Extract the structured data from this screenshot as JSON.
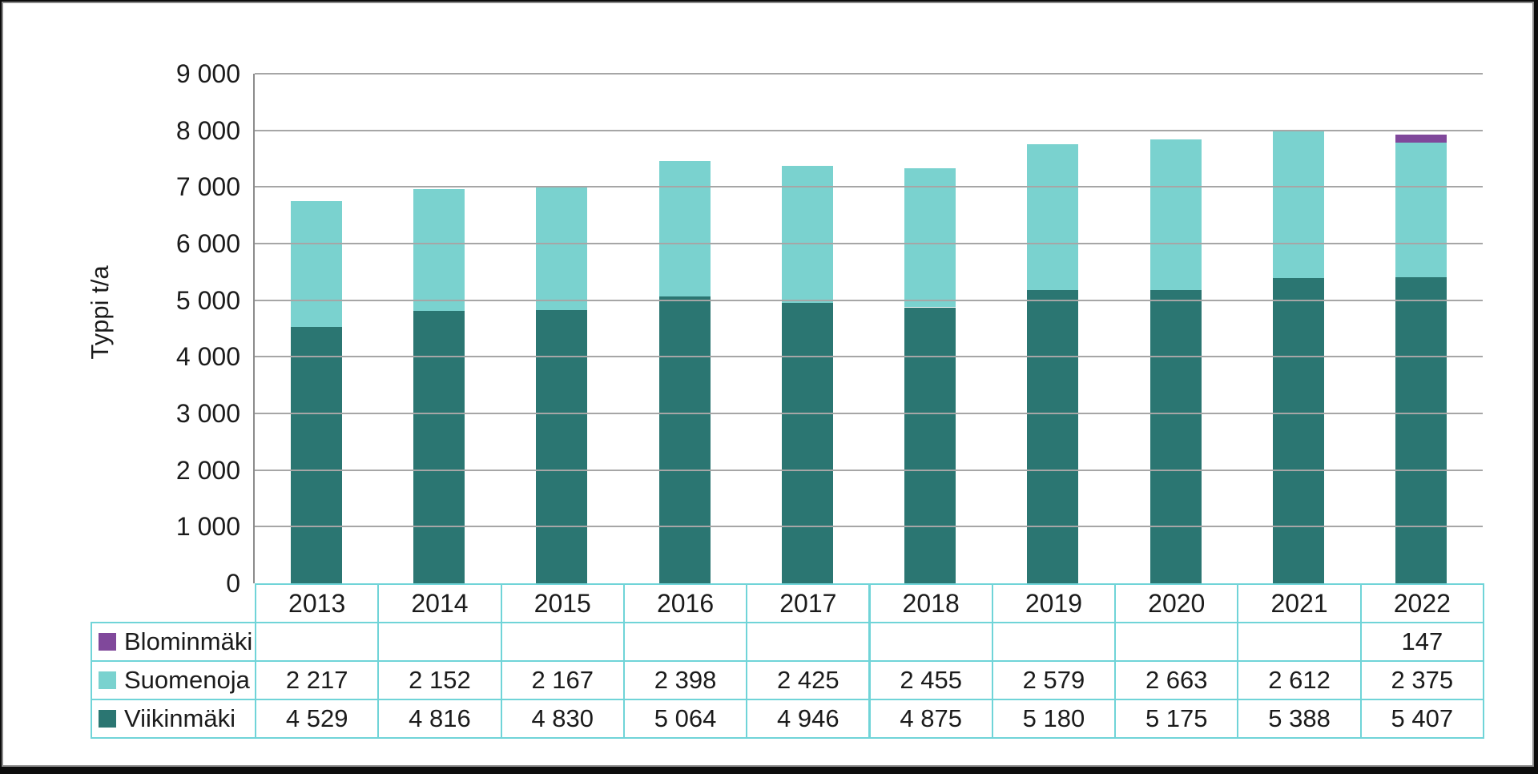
{
  "chart_data": {
    "type": "bar",
    "stacked": true,
    "title": "",
    "xlabel": "",
    "ylabel": "Typpi t/a",
    "ylim": [
      0,
      9000
    ],
    "ytick_step": 1000,
    "grid": true,
    "legend_position": "table-left-column",
    "categories": [
      "2013",
      "2014",
      "2015",
      "2016",
      "2017",
      "2018",
      "2019",
      "2020",
      "2021",
      "2022"
    ],
    "series": [
      {
        "name": "Viikinmäki",
        "color": "#2b7672",
        "values": [
          4529,
          4816,
          4830,
          5064,
          4946,
          4875,
          5180,
          5175,
          5388,
          5407
        ]
      },
      {
        "name": "Suomenoja",
        "color": "#7ad2cf",
        "values": [
          2217,
          2152,
          2167,
          2398,
          2425,
          2455,
          2579,
          2663,
          2612,
          2375
        ]
      },
      {
        "name": "Blominmäki",
        "color": "#80489b",
        "values": [
          null,
          null,
          null,
          null,
          null,
          null,
          null,
          null,
          null,
          147
        ]
      }
    ],
    "table_row_order": [
      "Blominmäki",
      "Suomenoja",
      "Viikinmäki"
    ],
    "number_format": "space-thousands"
  },
  "colors": {
    "table_border": "#70d4d8",
    "gridline": "#a6a6a6",
    "axis_line": "#8c8c8c",
    "text": "#1b1b1b",
    "background": "#ffffff"
  }
}
